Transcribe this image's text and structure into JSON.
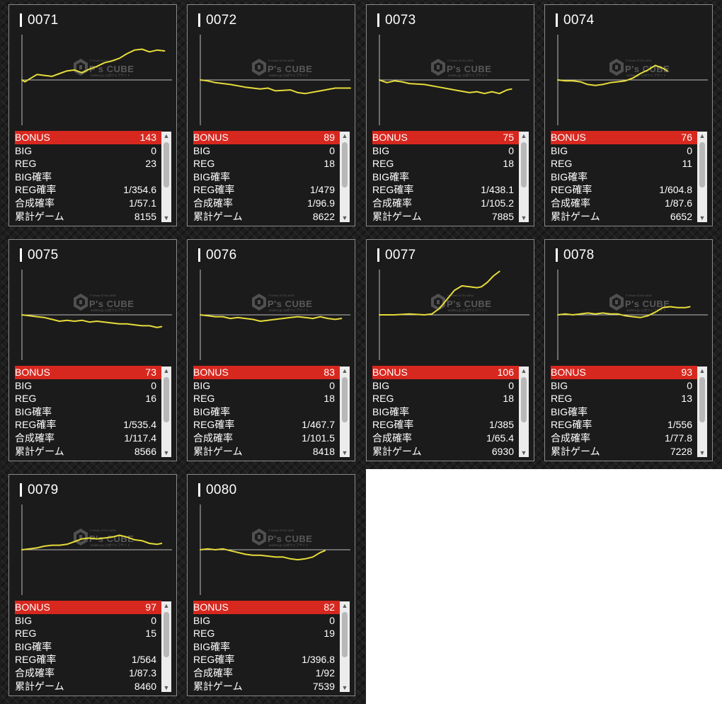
{
  "labels": {
    "bonus": "BONUS",
    "big": "BIG",
    "reg": "REG",
    "big_rate": "BIG確率",
    "reg_rate": "REG確率",
    "combined_rate": "合成確率",
    "total_games": "累計ゲーム"
  },
  "watermark": {
    "brand": "P's CUBE",
    "top_line": "P-World SITEs WEB",
    "sub_line": "anderu.jp 公式ウェブサイト"
  },
  "colors": {
    "highlight_red": "#d7281f",
    "graph_line": "#e6dc3a"
  },
  "machines": [
    {
      "id": "0071",
      "bonus": "143",
      "big": "0",
      "reg": "23",
      "big_rate": "",
      "reg_rate": "1/354.6",
      "combined_rate": "1/57.1",
      "total_games": "8155",
      "graph": [
        [
          0,
          0.5
        ],
        [
          0.02,
          0.48
        ],
        [
          0.05,
          0.51
        ],
        [
          0.1,
          0.56
        ],
        [
          0.15,
          0.55
        ],
        [
          0.2,
          0.54
        ],
        [
          0.25,
          0.57
        ],
        [
          0.3,
          0.6
        ],
        [
          0.35,
          0.61
        ],
        [
          0.4,
          0.58
        ],
        [
          0.45,
          0.62
        ],
        [
          0.5,
          0.65
        ],
        [
          0.55,
          0.69
        ],
        [
          0.6,
          0.71
        ],
        [
          0.65,
          0.74
        ],
        [
          0.7,
          0.79
        ],
        [
          0.75,
          0.83
        ],
        [
          0.8,
          0.84
        ],
        [
          0.85,
          0.81
        ],
        [
          0.9,
          0.83
        ],
        [
          0.95,
          0.82
        ]
      ]
    },
    {
      "id": "0072",
      "bonus": "89",
      "big": "0",
      "reg": "18",
      "big_rate": "",
      "reg_rate": "1/479",
      "combined_rate": "1/96.9",
      "total_games": "8622",
      "graph": [
        [
          0,
          0.5
        ],
        [
          0.05,
          0.49
        ],
        [
          0.1,
          0.47
        ],
        [
          0.2,
          0.45
        ],
        [
          0.3,
          0.42
        ],
        [
          0.4,
          0.4
        ],
        [
          0.45,
          0.41
        ],
        [
          0.5,
          0.38
        ],
        [
          0.6,
          0.39
        ],
        [
          0.65,
          0.36
        ],
        [
          0.7,
          0.35
        ],
        [
          0.8,
          0.38
        ],
        [
          0.9,
          0.41
        ],
        [
          1.0,
          0.41
        ]
      ]
    },
    {
      "id": "0073",
      "bonus": "75",
      "big": "0",
      "reg": "18",
      "big_rate": "",
      "reg_rate": "1/438.1",
      "combined_rate": "1/105.2",
      "total_games": "7885",
      "graph": [
        [
          0,
          0.5
        ],
        [
          0.05,
          0.47
        ],
        [
          0.1,
          0.49
        ],
        [
          0.15,
          0.48
        ],
        [
          0.2,
          0.46
        ],
        [
          0.3,
          0.45
        ],
        [
          0.4,
          0.42
        ],
        [
          0.5,
          0.39
        ],
        [
          0.6,
          0.36
        ],
        [
          0.65,
          0.37
        ],
        [
          0.7,
          0.35
        ],
        [
          0.75,
          0.37
        ],
        [
          0.8,
          0.35
        ],
        [
          0.85,
          0.39
        ],
        [
          0.88,
          0.4
        ]
      ]
    },
    {
      "id": "0074",
      "bonus": "76",
      "big": "0",
      "reg": "11",
      "big_rate": "",
      "reg_rate": "1/604.8",
      "combined_rate": "1/87.6",
      "total_games": "6652",
      "graph": [
        [
          0,
          0.5
        ],
        [
          0.05,
          0.49
        ],
        [
          0.1,
          0.49
        ],
        [
          0.15,
          0.48
        ],
        [
          0.2,
          0.45
        ],
        [
          0.25,
          0.44
        ],
        [
          0.3,
          0.45
        ],
        [
          0.35,
          0.47
        ],
        [
          0.4,
          0.48
        ],
        [
          0.45,
          0.49
        ],
        [
          0.5,
          0.52
        ],
        [
          0.55,
          0.57
        ],
        [
          0.6,
          0.61
        ],
        [
          0.65,
          0.66
        ],
        [
          0.7,
          0.63
        ],
        [
          0.73,
          0.6
        ]
      ]
    },
    {
      "id": "0075",
      "bonus": "73",
      "big": "0",
      "reg": "16",
      "big_rate": "",
      "reg_rate": "1/535.4",
      "combined_rate": "1/117.4",
      "total_games": "8566",
      "graph": [
        [
          0,
          0.5
        ],
        [
          0.05,
          0.49
        ],
        [
          0.1,
          0.48
        ],
        [
          0.15,
          0.47
        ],
        [
          0.2,
          0.45
        ],
        [
          0.25,
          0.43
        ],
        [
          0.3,
          0.44
        ],
        [
          0.35,
          0.43
        ],
        [
          0.4,
          0.44
        ],
        [
          0.45,
          0.42
        ],
        [
          0.5,
          0.43
        ],
        [
          0.55,
          0.42
        ],
        [
          0.6,
          0.41
        ],
        [
          0.65,
          0.4
        ],
        [
          0.7,
          0.4
        ],
        [
          0.75,
          0.39
        ],
        [
          0.8,
          0.38
        ],
        [
          0.85,
          0.38
        ],
        [
          0.9,
          0.36
        ],
        [
          0.93,
          0.37
        ]
      ]
    },
    {
      "id": "0076",
      "bonus": "83",
      "big": "0",
      "reg": "18",
      "big_rate": "",
      "reg_rate": "1/467.7",
      "combined_rate": "1/101.5",
      "total_games": "8418",
      "graph": [
        [
          0,
          0.5
        ],
        [
          0.05,
          0.49
        ],
        [
          0.1,
          0.48
        ],
        [
          0.15,
          0.48
        ],
        [
          0.2,
          0.46
        ],
        [
          0.25,
          0.47
        ],
        [
          0.3,
          0.46
        ],
        [
          0.35,
          0.45
        ],
        [
          0.4,
          0.43
        ],
        [
          0.45,
          0.44
        ],
        [
          0.5,
          0.45
        ],
        [
          0.55,
          0.46
        ],
        [
          0.6,
          0.47
        ],
        [
          0.65,
          0.48
        ],
        [
          0.7,
          0.47
        ],
        [
          0.75,
          0.46
        ],
        [
          0.8,
          0.48
        ],
        [
          0.85,
          0.46
        ],
        [
          0.9,
          0.45
        ],
        [
          0.94,
          0.46
        ]
      ]
    },
    {
      "id": "0077",
      "bonus": "106",
      "big": "0",
      "reg": "18",
      "big_rate": "",
      "reg_rate": "1/385",
      "combined_rate": "1/65.4",
      "total_games": "6930",
      "graph": [
        [
          0,
          0.5
        ],
        [
          0.1,
          0.5
        ],
        [
          0.2,
          0.51
        ],
        [
          0.3,
          0.5
        ],
        [
          0.35,
          0.51
        ],
        [
          0.4,
          0.57
        ],
        [
          0.45,
          0.67
        ],
        [
          0.5,
          0.77
        ],
        [
          0.55,
          0.82
        ],
        [
          0.6,
          0.81
        ],
        [
          0.65,
          0.8
        ],
        [
          0.68,
          0.81
        ],
        [
          0.72,
          0.86
        ],
        [
          0.76,
          0.93
        ],
        [
          0.8,
          0.98
        ]
      ]
    },
    {
      "id": "0078",
      "bonus": "93",
      "big": "0",
      "reg": "13",
      "big_rate": "",
      "reg_rate": "1/556",
      "combined_rate": "1/77.8",
      "total_games": "7228",
      "graph": [
        [
          0,
          0.5
        ],
        [
          0.05,
          0.51
        ],
        [
          0.1,
          0.5
        ],
        [
          0.15,
          0.51
        ],
        [
          0.2,
          0.52
        ],
        [
          0.25,
          0.51
        ],
        [
          0.3,
          0.52
        ],
        [
          0.35,
          0.51
        ],
        [
          0.4,
          0.51
        ],
        [
          0.45,
          0.49
        ],
        [
          0.5,
          0.48
        ],
        [
          0.55,
          0.47
        ],
        [
          0.6,
          0.49
        ],
        [
          0.65,
          0.53
        ],
        [
          0.7,
          0.58
        ],
        [
          0.75,
          0.59
        ],
        [
          0.8,
          0.58
        ],
        [
          0.85,
          0.58
        ],
        [
          0.88,
          0.59
        ]
      ]
    },
    {
      "id": "0079",
      "bonus": "97",
      "big": "0",
      "reg": "15",
      "big_rate": "",
      "reg_rate": "1/564",
      "combined_rate": "1/87.3",
      "total_games": "8460",
      "graph": [
        [
          0,
          0.5
        ],
        [
          0.05,
          0.51
        ],
        [
          0.1,
          0.52
        ],
        [
          0.15,
          0.54
        ],
        [
          0.2,
          0.55
        ],
        [
          0.25,
          0.55
        ],
        [
          0.3,
          0.56
        ],
        [
          0.35,
          0.59
        ],
        [
          0.4,
          0.62
        ],
        [
          0.45,
          0.63
        ],
        [
          0.5,
          0.62
        ],
        [
          0.55,
          0.63
        ],
        [
          0.6,
          0.64
        ],
        [
          0.65,
          0.66
        ],
        [
          0.7,
          0.64
        ],
        [
          0.75,
          0.61
        ],
        [
          0.8,
          0.6
        ],
        [
          0.85,
          0.57
        ],
        [
          0.9,
          0.56
        ],
        [
          0.93,
          0.57
        ]
      ]
    },
    {
      "id": "0080",
      "bonus": "82",
      "big": "0",
      "reg": "19",
      "big_rate": "",
      "reg_rate": "1/396.8",
      "combined_rate": "1/92",
      "total_games": "7539",
      "graph": [
        [
          0,
          0.5
        ],
        [
          0.05,
          0.51
        ],
        [
          0.1,
          0.5
        ],
        [
          0.15,
          0.51
        ],
        [
          0.2,
          0.49
        ],
        [
          0.25,
          0.47
        ],
        [
          0.3,
          0.45
        ],
        [
          0.35,
          0.44
        ],
        [
          0.4,
          0.44
        ],
        [
          0.45,
          0.43
        ],
        [
          0.5,
          0.42
        ],
        [
          0.55,
          0.42
        ],
        [
          0.6,
          0.4
        ],
        [
          0.65,
          0.39
        ],
        [
          0.7,
          0.4
        ],
        [
          0.75,
          0.42
        ],
        [
          0.8,
          0.47
        ],
        [
          0.83,
          0.49
        ]
      ]
    }
  ]
}
